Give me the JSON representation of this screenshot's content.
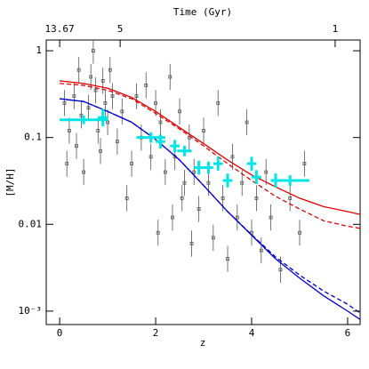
{
  "chart_data": {
    "type": "scatter",
    "x_label": "z",
    "y_label": "[M/H]",
    "top_label": "Time (Gyr)",
    "xlim": [
      -0.28,
      6.26
    ],
    "ylim": [
      0.0007,
      1.33
    ],
    "log_y": true,
    "xticks": [
      0,
      2,
      4,
      6
    ],
    "yticks": [
      1,
      0.1,
      0.01,
      {
        "value": 0.001,
        "label": "10⁻³"
      }
    ],
    "top_ticks": [
      {
        "value": 0,
        "label": "13.67"
      },
      {
        "value": 1.26,
        "label": "5"
      },
      {
        "value": 5.74,
        "label": "1"
      }
    ],
    "lines": [
      {
        "color": "#e00000",
        "dash": false,
        "x": [
          0,
          0.5,
          1,
          1.5,
          2,
          2.5,
          3,
          3.5,
          4,
          4.5,
          5,
          5.5,
          6,
          6.26
        ],
        "values": [
          0.45,
          0.42,
          0.37,
          0.29,
          0.2,
          0.13,
          0.085,
          0.055,
          0.037,
          0.027,
          0.02,
          0.016,
          0.014,
          0.013
        ]
      },
      {
        "color": "#e00000",
        "dash": true,
        "x": [
          0,
          0.5,
          1,
          1.5,
          2,
          2.5,
          3,
          3.5,
          4,
          4.5,
          5,
          5.5,
          6,
          6.26
        ],
        "values": [
          0.42,
          0.4,
          0.35,
          0.28,
          0.19,
          0.125,
          0.08,
          0.05,
          0.032,
          0.021,
          0.015,
          0.011,
          0.0095,
          0.009
        ]
      },
      {
        "color": "#0000d0",
        "dash": false,
        "x": [
          0,
          0.5,
          1,
          1.5,
          2,
          2.5,
          3,
          3.5,
          4,
          4.5,
          5,
          5.5,
          6,
          6.26
        ],
        "values": [
          0.28,
          0.26,
          0.2,
          0.15,
          0.095,
          0.055,
          0.028,
          0.014,
          0.0075,
          0.004,
          0.0024,
          0.0015,
          0.001,
          0.0008
        ]
      },
      {
        "color": "#0000d0",
        "dash": true,
        "x": [
          0,
          0.5,
          1,
          1.5,
          2,
          2.5,
          3,
          3.5,
          4,
          4.5,
          5,
          5.5,
          6,
          6.26
        ],
        "values": [
          0.28,
          0.26,
          0.2,
          0.15,
          0.095,
          0.055,
          0.028,
          0.014,
          0.0076,
          0.0042,
          0.0026,
          0.0017,
          0.0012,
          0.00095
        ]
      }
    ],
    "points": {
      "color": "#555555",
      "yerr_dex": 0.15,
      "x": [
        0.1,
        0.15,
        0.2,
        0.3,
        0.35,
        0.4,
        0.45,
        0.5,
        0.6,
        0.65,
        0.7,
        0.75,
        0.8,
        0.85,
        0.9,
        0.95,
        1.0,
        1.05,
        1.1,
        1.2,
        1.3,
        1.4,
        1.5,
        1.6,
        1.7,
        1.8,
        1.9,
        2.0,
        2.05,
        2.1,
        2.2,
        2.3,
        2.35,
        2.4,
        2.5,
        2.55,
        2.6,
        2.7,
        2.75,
        2.8,
        2.9,
        3.0,
        3.1,
        3.2,
        3.3,
        3.4,
        3.5,
        3.6,
        3.7,
        3.8,
        3.9,
        4.0,
        4.1,
        4.2,
        4.3,
        4.4,
        4.6,
        4.8,
        5.0,
        5.1
      ],
      "values": [
        0.25,
        0.05,
        0.12,
        0.3,
        0.08,
        0.6,
        0.18,
        0.04,
        0.22,
        0.5,
        1.0,
        0.35,
        0.12,
        0.07,
        0.45,
        0.25,
        0.15,
        0.6,
        0.3,
        0.09,
        0.2,
        0.02,
        0.05,
        0.3,
        0.1,
        0.4,
        0.06,
        0.25,
        0.008,
        0.15,
        0.04,
        0.5,
        0.012,
        0.06,
        0.2,
        0.02,
        0.03,
        0.1,
        0.006,
        0.04,
        0.015,
        0.12,
        0.03,
        0.007,
        0.25,
        0.02,
        0.004,
        0.06,
        0.012,
        0.03,
        0.15,
        0.008,
        0.02,
        0.005,
        0.04,
        0.012,
        0.003,
        0.02,
        0.008,
        0.05
      ]
    },
    "binned": {
      "color": "#00e5e5",
      "x": [
        0.5,
        0.9,
        1.9,
        2.1,
        2.4,
        2.6,
        2.9,
        3.1,
        3.3,
        3.5,
        4.0,
        4.1,
        4.5,
        4.8
      ],
      "values": [
        0.16,
        0.17,
        0.1,
        0.09,
        0.08,
        0.07,
        0.045,
        0.045,
        0.05,
        0.032,
        0.05,
        0.035,
        0.032,
        0.032
      ],
      "xerr": [
        0.5,
        0.1,
        0.3,
        0.1,
        0.1,
        0.15,
        0.1,
        0.1,
        0.1,
        0.1,
        0.1,
        0.1,
        0.1,
        0.4
      ],
      "yerr_dex": [
        0.05,
        0.1,
        0.06,
        0.08,
        0.07,
        0.06,
        0.08,
        0.07,
        0.08,
        0.08,
        0.08,
        0.08,
        0.08,
        0.06
      ]
    }
  }
}
